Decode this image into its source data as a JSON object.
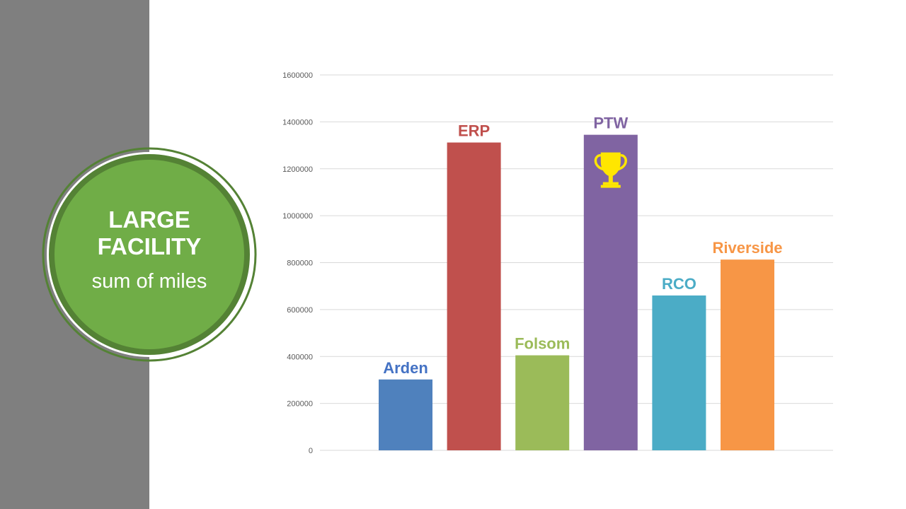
{
  "badge": {
    "title": "LARGE FACILITY",
    "subtitle": "sum of miles",
    "fill_color": "#70ad47",
    "ring_color": "#548235"
  },
  "side_panel_color": "#7f7f7f",
  "chart_data": {
    "type": "bar",
    "title": "",
    "xlabel": "",
    "ylabel": "",
    "ylim": [
      0,
      1600000
    ],
    "yticks": [
      0,
      200000,
      400000,
      600000,
      800000,
      1000000,
      1200000,
      1400000,
      1600000
    ],
    "grid": true,
    "legend": "none",
    "categories": [
      "Arden",
      "ERP",
      "Folsom",
      "PTW",
      "RCO",
      "Riverside"
    ],
    "values": [
      302000,
      1312000,
      405000,
      1345000,
      660000,
      813000
    ],
    "colors": [
      "#4f81bd",
      "#c0504d",
      "#9bbb59",
      "#8064a2",
      "#4bacc6",
      "#f79646"
    ],
    "label_colors": [
      "#4472c4",
      "#c0504d",
      "#9bbb59",
      "#8064a2",
      "#4bacc6",
      "#f79646"
    ],
    "winner": "PTW",
    "winner_icon": "trophy-icon"
  }
}
